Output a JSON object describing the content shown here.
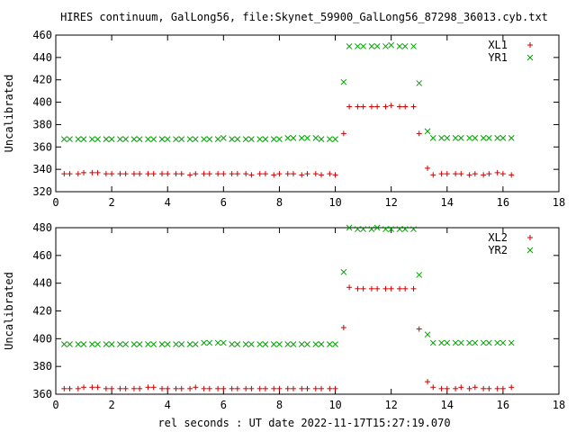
{
  "title": "HIRES continuum, GalLong56, file:Skynet_59900_GalLong56_87298_36013.cyb.txt",
  "xlabel": "rel seconds : UT date 2022-11-17T15:27:19.070",
  "chart_data": [
    {
      "type": "scatter",
      "ylabel": "Uncalibrated",
      "xlim": [
        0,
        18
      ],
      "ylim": [
        320,
        460
      ],
      "xticks": [
        0,
        2,
        4,
        6,
        8,
        10,
        12,
        14,
        16,
        18
      ],
      "yticks": [
        320,
        340,
        360,
        380,
        400,
        420,
        440,
        460
      ],
      "grid": false,
      "legend": "top-right",
      "series": [
        {
          "name": "XL1",
          "marker": "plus",
          "color": "#cc0000",
          "x": [
            0.3,
            0.5,
            0.8,
            1.0,
            1.3,
            1.5,
            1.8,
            2.0,
            2.3,
            2.5,
            2.8,
            3.0,
            3.3,
            3.5,
            3.8,
            4.0,
            4.3,
            4.5,
            4.8,
            5.0,
            5.3,
            5.5,
            5.8,
            6.0,
            6.3,
            6.5,
            6.8,
            7.0,
            7.3,
            7.5,
            7.8,
            8.0,
            8.3,
            8.5,
            8.8,
            9.0,
            9.3,
            9.5,
            9.8,
            10.0,
            10.3,
            10.5,
            10.8,
            11.0,
            11.3,
            11.5,
            11.8,
            12.0,
            12.3,
            12.5,
            12.8,
            13.0,
            13.3,
            13.5,
            13.8,
            14.0,
            14.3,
            14.5,
            14.8,
            15.0,
            15.3,
            15.5,
            15.8,
            16.0,
            16.3
          ],
          "y": [
            336,
            336,
            336,
            337,
            337,
            337,
            336,
            336,
            336,
            336,
            336,
            336,
            336,
            336,
            336,
            336,
            336,
            336,
            335,
            336,
            336,
            336,
            336,
            336,
            336,
            336,
            336,
            335,
            336,
            336,
            335,
            336,
            336,
            336,
            335,
            336,
            336,
            335,
            336,
            335,
            372,
            396,
            396,
            396,
            396,
            396,
            396,
            397,
            396,
            396,
            396,
            372,
            341,
            335,
            336,
            336,
            336,
            336,
            335,
            336,
            335,
            336,
            337,
            336,
            335
          ]
        },
        {
          "name": "YR1",
          "marker": "cross",
          "color": "#00a000",
          "x": [
            0.3,
            0.5,
            0.8,
            1.0,
            1.3,
            1.5,
            1.8,
            2.0,
            2.3,
            2.5,
            2.8,
            3.0,
            3.3,
            3.5,
            3.8,
            4.0,
            4.3,
            4.5,
            4.8,
            5.0,
            5.3,
            5.5,
            5.8,
            6.0,
            6.3,
            6.5,
            6.8,
            7.0,
            7.3,
            7.5,
            7.8,
            8.0,
            8.3,
            8.5,
            8.8,
            9.0,
            9.3,
            9.5,
            9.8,
            10.0,
            10.3,
            10.5,
            10.8,
            11.0,
            11.3,
            11.5,
            11.8,
            12.0,
            12.3,
            12.5,
            12.8,
            13.0,
            13.3,
            13.5,
            13.8,
            14.0,
            14.3,
            14.5,
            14.8,
            15.0,
            15.3,
            15.5,
            15.8,
            16.0,
            16.3
          ],
          "y": [
            367,
            367,
            367,
            367,
            367,
            367,
            367,
            367,
            367,
            367,
            367,
            367,
            367,
            367,
            367,
            367,
            367,
            367,
            367,
            367,
            367,
            367,
            367,
            368,
            367,
            367,
            367,
            367,
            367,
            367,
            367,
            367,
            368,
            368,
            368,
            368,
            368,
            367,
            367,
            367,
            418,
            450,
            450,
            450,
            450,
            450,
            450,
            451,
            450,
            450,
            450,
            417,
            374,
            368,
            368,
            368,
            368,
            368,
            368,
            368,
            368,
            368,
            368,
            368,
            368
          ]
        }
      ]
    },
    {
      "type": "scatter",
      "ylabel": "Uncalibrated",
      "xlim": [
        0,
        18
      ],
      "ylim": [
        360,
        480
      ],
      "xticks": [
        0,
        2,
        4,
        6,
        8,
        10,
        12,
        14,
        16,
        18
      ],
      "yticks": [
        360,
        380,
        400,
        420,
        440,
        460,
        480
      ],
      "grid": false,
      "legend": "top-right",
      "series": [
        {
          "name": "XL2",
          "marker": "plus",
          "color": "#cc0000",
          "x": [
            0.3,
            0.5,
            0.8,
            1.0,
            1.3,
            1.5,
            1.8,
            2.0,
            2.3,
            2.5,
            2.8,
            3.0,
            3.3,
            3.5,
            3.8,
            4.0,
            4.3,
            4.5,
            4.8,
            5.0,
            5.3,
            5.5,
            5.8,
            6.0,
            6.3,
            6.5,
            6.8,
            7.0,
            7.3,
            7.5,
            7.8,
            8.0,
            8.3,
            8.5,
            8.8,
            9.0,
            9.3,
            9.5,
            9.8,
            10.0,
            10.3,
            10.5,
            10.8,
            11.0,
            11.3,
            11.5,
            11.8,
            12.0,
            12.3,
            12.5,
            12.8,
            13.0,
            13.3,
            13.5,
            13.8,
            14.0,
            14.3,
            14.5,
            14.8,
            15.0,
            15.3,
            15.5,
            15.8,
            16.0,
            16.3
          ],
          "y": [
            364,
            364,
            364,
            365,
            365,
            365,
            364,
            364,
            364,
            364,
            364,
            364,
            365,
            365,
            364,
            364,
            364,
            364,
            364,
            365,
            364,
            364,
            364,
            364,
            364,
            364,
            364,
            364,
            364,
            364,
            364,
            364,
            364,
            364,
            364,
            364,
            364,
            364,
            364,
            364,
            408,
            437,
            436,
            436,
            436,
            436,
            436,
            436,
            436,
            436,
            436,
            407,
            369,
            365,
            364,
            364,
            364,
            365,
            364,
            365,
            364,
            364,
            364,
            364,
            365
          ]
        },
        {
          "name": "YR2",
          "marker": "cross",
          "color": "#00a000",
          "x": [
            0.3,
            0.5,
            0.8,
            1.0,
            1.3,
            1.5,
            1.8,
            2.0,
            2.3,
            2.5,
            2.8,
            3.0,
            3.3,
            3.5,
            3.8,
            4.0,
            4.3,
            4.5,
            4.8,
            5.0,
            5.3,
            5.5,
            5.8,
            6.0,
            6.3,
            6.5,
            6.8,
            7.0,
            7.3,
            7.5,
            7.8,
            8.0,
            8.3,
            8.5,
            8.8,
            9.0,
            9.3,
            9.5,
            9.8,
            10.0,
            10.3,
            10.5,
            10.8,
            11.0,
            11.3,
            11.5,
            11.8,
            12.0,
            12.3,
            12.5,
            12.8,
            13.0,
            13.3,
            13.5,
            13.8,
            14.0,
            14.3,
            14.5,
            14.8,
            15.0,
            15.3,
            15.5,
            15.8,
            16.0,
            16.3
          ],
          "y": [
            396,
            396,
            396,
            396,
            396,
            396,
            396,
            396,
            396,
            396,
            396,
            396,
            396,
            396,
            396,
            396,
            396,
            396,
            396,
            396,
            397,
            397,
            397,
            397,
            396,
            396,
            396,
            396,
            396,
            396,
            396,
            396,
            396,
            396,
            396,
            396,
            396,
            396,
            396,
            396,
            448,
            480,
            479,
            479,
            479,
            480,
            479,
            479,
            479,
            479,
            479,
            446,
            403,
            397,
            397,
            397,
            397,
            397,
            397,
            397,
            397,
            397,
            397,
            397,
            397
          ]
        }
      ]
    }
  ]
}
